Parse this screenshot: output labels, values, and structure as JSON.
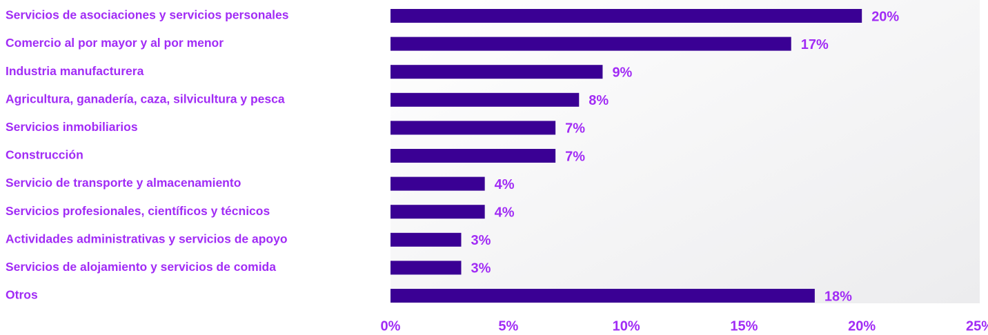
{
  "chart_data": {
    "type": "bar",
    "orientation": "horizontal",
    "categories": [
      "Servicios de asociaciones y servicios personales",
      "Comercio al por mayor y al por menor",
      "Industria manufacturera",
      "Agricultura, ganadería, caza, silvicultura y pesca",
      "Servicios inmobiliarios",
      "Construcción",
      "Servicio de transporte y almacenamiento",
      "Servicios profesionales, científicos y técnicos",
      "Actividades administrativas y servicios de apoyo",
      "Servicios de alojamiento y servicios de comida",
      "Otros"
    ],
    "values": [
      20,
      17,
      9,
      8,
      7,
      7,
      4,
      4,
      3,
      3,
      18
    ],
    "value_labels": [
      "20%",
      "17%",
      "9%",
      "8%",
      "7%",
      "7%",
      "4%",
      "4%",
      "3%",
      "3%",
      "18%"
    ],
    "color": "#3a0094",
    "xlim": [
      0,
      25
    ],
    "xticks": [
      {
        "value": 0,
        "label": "0%"
      },
      {
        "value": 5,
        "label": "5%"
      },
      {
        "value": 10,
        "label": "10%"
      },
      {
        "value": 15,
        "label": "15%"
      },
      {
        "value": 20,
        "label": "20%"
      },
      {
        "value": 25,
        "label": "25%"
      }
    ]
  }
}
